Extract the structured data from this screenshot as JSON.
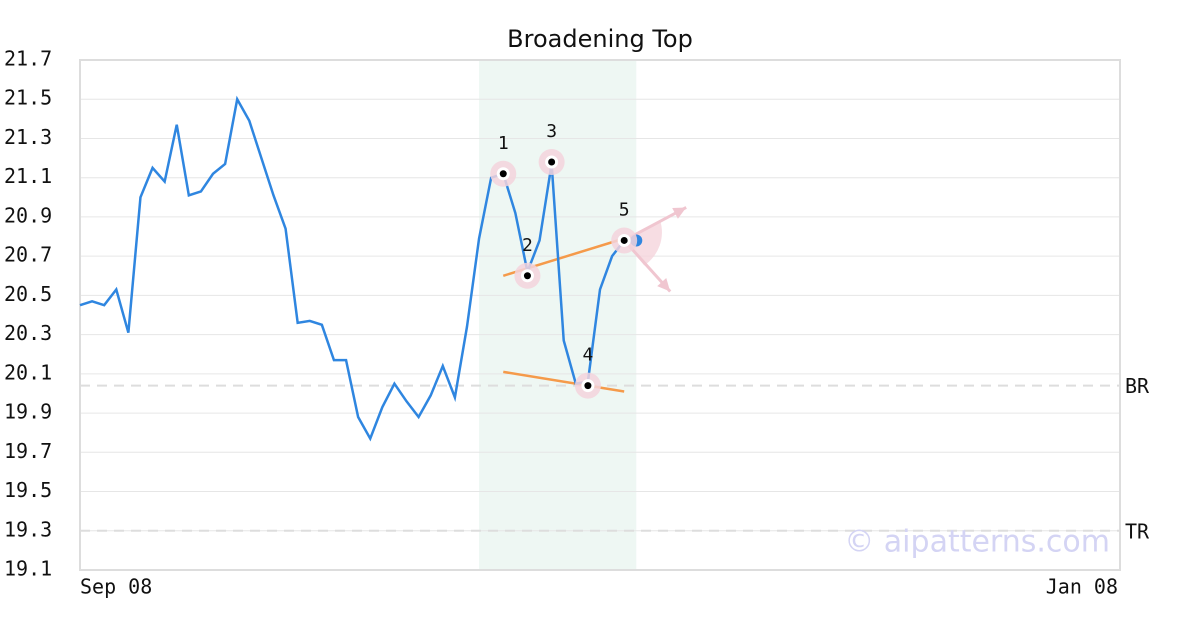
{
  "chart_data": {
    "type": "line",
    "title": "Broadening Top",
    "x": [
      0,
      1,
      2,
      3,
      4,
      5,
      6,
      7,
      8,
      9,
      10,
      11,
      12,
      13,
      14,
      15,
      16,
      17,
      18,
      19,
      20,
      21,
      22,
      23,
      24,
      25,
      26,
      27,
      28,
      29,
      30,
      31,
      32,
      33,
      34,
      35,
      36,
      37,
      38,
      39,
      40,
      41,
      42,
      43,
      44,
      45,
      46
    ],
    "series": [
      {
        "color": "#2f86e0",
        "values": [
          20.45,
          20.47,
          20.45,
          20.53,
          20.31,
          21.0,
          21.15,
          21.08,
          21.37,
          21.01,
          21.03,
          21.12,
          21.17,
          21.5,
          21.39,
          21.2,
          21.01,
          20.84,
          20.36,
          20.37,
          20.35,
          20.17,
          20.17,
          19.88,
          19.77,
          19.93,
          20.05,
          19.96,
          19.88,
          19.99,
          20.14,
          19.98,
          20.34,
          20.79,
          21.1,
          21.12,
          20.92,
          20.62,
          20.78,
          21.17,
          20.27,
          20.05,
          20.06,
          20.53,
          20.7,
          20.78,
          20.78
        ]
      }
    ],
    "xlim": [
      0,
      86
    ],
    "xticks": [
      {
        "value": 0,
        "label": "Sep 08"
      },
      {
        "value": 86,
        "label": "Jan 08"
      }
    ],
    "ylim": [
      19.1,
      21.7
    ],
    "yticks": [
      19.1,
      19.3,
      19.5,
      19.7,
      19.9,
      20.1,
      20.3,
      20.5,
      20.7,
      20.9,
      21.1,
      21.3,
      21.5,
      21.7
    ],
    "grid": true,
    "highlight": [
      33,
      46
    ],
    "pattern_points": [
      {
        "label": "1",
        "x": 35,
        "y": 21.12
      },
      {
        "label": "2",
        "x": 37,
        "y": 20.6
      },
      {
        "label": "3",
        "x": 39,
        "y": 21.18
      },
      {
        "label": "4",
        "x": 42,
        "y": 20.04
      },
      {
        "label": "5",
        "x": 45,
        "y": 20.78
      }
    ],
    "trendlines": [
      {
        "color": "#f59a4a",
        "x": [
          35,
          45
        ],
        "y": [
          20.6,
          20.79
        ]
      },
      {
        "color": "#f59a4a",
        "x": [
          35,
          45
        ],
        "y": [
          20.11,
          20.01
        ]
      }
    ],
    "levels": [
      {
        "label": "BR",
        "value": 20.04
      },
      {
        "label": "TR",
        "value": 19.3
      }
    ],
    "watermark": "© aipatterns.com"
  }
}
